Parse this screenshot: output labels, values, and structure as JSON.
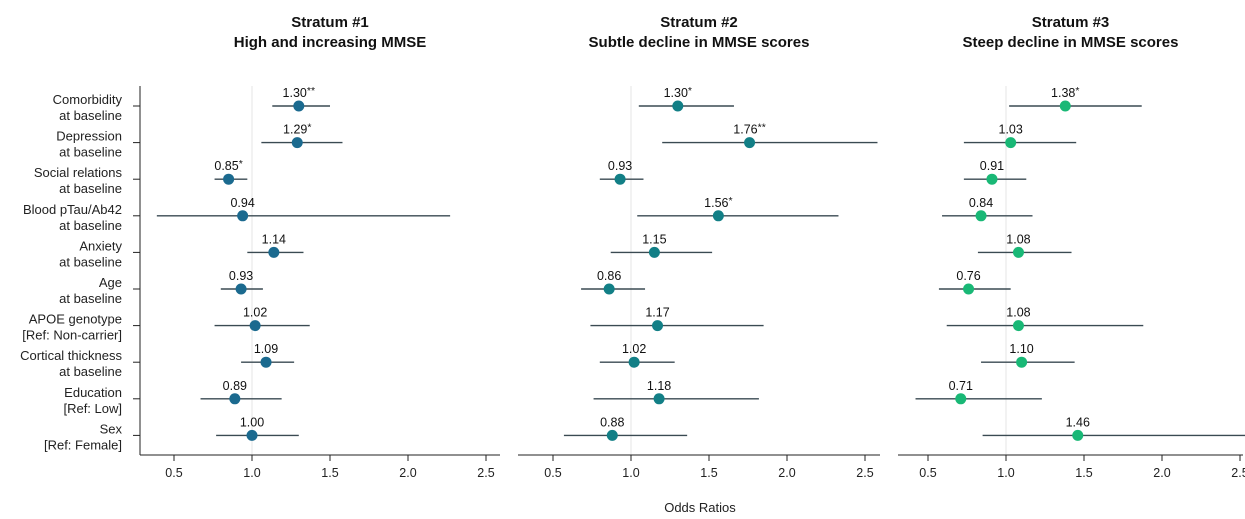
{
  "chart_data": {
    "type": "forest",
    "xlabel": "Odds Ratios",
    "xlim": [
      0.35,
      2.55
    ],
    "xticks": [
      "0.5",
      "1.0",
      "1.5",
      "2.0",
      "2.5"
    ],
    "xtick_values": [
      0.5,
      1.0,
      1.5,
      2.0,
      2.5
    ],
    "reference_line": 1.0,
    "variables": [
      [
        "Comorbidity",
        "at baseline"
      ],
      [
        "Depression",
        "at baseline"
      ],
      [
        "Social relations",
        "at baseline"
      ],
      [
        "Blood pTau/Ab42",
        "at baseline"
      ],
      [
        "Anxiety",
        "at baseline"
      ],
      [
        "Age",
        "at baseline"
      ],
      [
        "APOE genotype",
        "[Ref: Non-carrier]"
      ],
      [
        "Cortical thickness",
        "at baseline"
      ],
      [
        "Education",
        "[Ref: Low]"
      ],
      [
        "Sex",
        "[Ref: Female]"
      ]
    ],
    "panels": [
      {
        "title": [
          "Stratum #1",
          "High and increasing MMSE"
        ],
        "color": "#1b6a8f",
        "rows": [
          {
            "or": 1.3,
            "lo": 1.13,
            "hi": 1.5,
            "label": "1.30",
            "sig": "**"
          },
          {
            "or": 1.29,
            "lo": 1.06,
            "hi": 1.58,
            "label": "1.29",
            "sig": "*"
          },
          {
            "or": 0.85,
            "lo": 0.76,
            "hi": 0.97,
            "label": "0.85",
            "sig": "*"
          },
          {
            "or": 0.94,
            "lo": 0.39,
            "hi": 2.27,
            "label": "0.94",
            "sig": ""
          },
          {
            "or": 1.14,
            "lo": 0.97,
            "hi": 1.33,
            "label": "1.14",
            "sig": ""
          },
          {
            "or": 0.93,
            "lo": 0.8,
            "hi": 1.07,
            "label": "0.93",
            "sig": ""
          },
          {
            "or": 1.02,
            "lo": 0.76,
            "hi": 1.37,
            "label": "1.02",
            "sig": ""
          },
          {
            "or": 1.09,
            "lo": 0.93,
            "hi": 1.27,
            "label": "1.09",
            "sig": ""
          },
          {
            "or": 0.89,
            "lo": 0.67,
            "hi": 1.19,
            "label": "0.89",
            "sig": ""
          },
          {
            "or": 1.0,
            "lo": 0.77,
            "hi": 1.3,
            "label": "1.00",
            "sig": ""
          }
        ]
      },
      {
        "title": [
          "Stratum #2",
          "Subtle decline in MMSE scores"
        ],
        "color": "#127f86",
        "rows": [
          {
            "or": 1.3,
            "lo": 1.05,
            "hi": 1.66,
            "label": "1.30",
            "sig": "*"
          },
          {
            "or": 1.76,
            "lo": 1.2,
            "hi": 2.58,
            "label": "1.76",
            "sig": "**"
          },
          {
            "or": 0.93,
            "lo": 0.8,
            "hi": 1.08,
            "label": "0.93",
            "sig": ""
          },
          {
            "or": 1.56,
            "lo": 1.04,
            "hi": 2.33,
            "label": "1.56",
            "sig": "*"
          },
          {
            "or": 1.15,
            "lo": 0.87,
            "hi": 1.52,
            "label": "1.15",
            "sig": ""
          },
          {
            "or": 0.86,
            "lo": 0.68,
            "hi": 1.09,
            "label": "0.86",
            "sig": ""
          },
          {
            "or": 1.17,
            "lo": 0.74,
            "hi": 1.85,
            "label": "1.17",
            "sig": ""
          },
          {
            "or": 1.02,
            "lo": 0.8,
            "hi": 1.28,
            "label": "1.02",
            "sig": ""
          },
          {
            "or": 1.18,
            "lo": 0.76,
            "hi": 1.82,
            "label": "1.18",
            "sig": ""
          },
          {
            "or": 0.88,
            "lo": 0.57,
            "hi": 1.36,
            "label": "0.88",
            "sig": ""
          }
        ]
      },
      {
        "title": [
          "Stratum #3",
          "Steep decline in MMSE scores"
        ],
        "color": "#19b876",
        "rows": [
          {
            "or": 1.38,
            "lo": 1.02,
            "hi": 1.87,
            "label": "1.38",
            "sig": "*"
          },
          {
            "or": 1.03,
            "lo": 0.73,
            "hi": 1.45,
            "label": "1.03",
            "sig": ""
          },
          {
            "or": 0.91,
            "lo": 0.73,
            "hi": 1.13,
            "label": "0.91",
            "sig": ""
          },
          {
            "or": 0.84,
            "lo": 0.59,
            "hi": 1.17,
            "label": "0.84",
            "sig": ""
          },
          {
            "or": 1.08,
            "lo": 0.82,
            "hi": 1.42,
            "label": "1.08",
            "sig": ""
          },
          {
            "or": 0.76,
            "lo": 0.57,
            "hi": 1.03,
            "label": "0.76",
            "sig": ""
          },
          {
            "or": 1.08,
            "lo": 0.62,
            "hi": 1.88,
            "label": "1.08",
            "sig": ""
          },
          {
            "or": 1.1,
            "lo": 0.84,
            "hi": 1.44,
            "label": "1.10",
            "sig": ""
          },
          {
            "or": 0.71,
            "lo": 0.42,
            "hi": 1.23,
            "label": "0.71",
            "sig": ""
          },
          {
            "or": 1.46,
            "lo": 0.85,
            "hi": 2.55,
            "label": "1.46",
            "sig": ""
          }
        ]
      }
    ]
  }
}
